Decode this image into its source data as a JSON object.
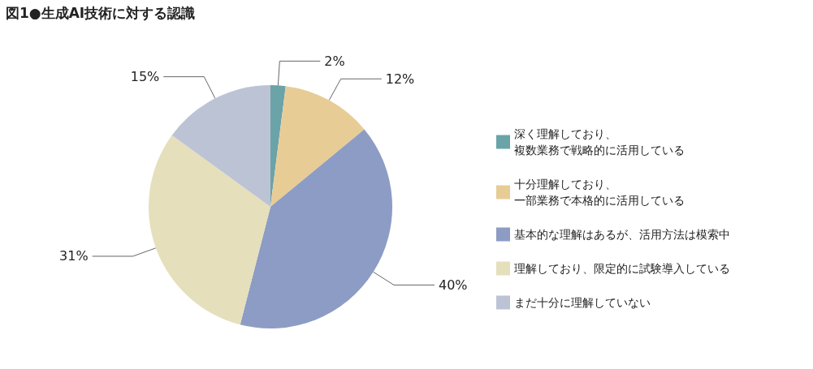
{
  "chart_data": {
    "type": "pie",
    "title": "図1●生成AI技術に対する認識",
    "categories": [
      "深く理解しており、複数業務で戦略的に活用している",
      "十分理解しており、一部業務で本格的に活用している",
      "基本的な理解はあるが、活用方法は模索中",
      "理解しており、限定的に試験導入している",
      "まだ十分に理解していない"
    ],
    "values": [
      2,
      12,
      40,
      31,
      15
    ],
    "value_labels": [
      "2%",
      "12%",
      "40%",
      "31%",
      "15%"
    ],
    "colors": [
      "#6aa3a8",
      "#e8cc96",
      "#8d9cc4",
      "#e5dfbb",
      "#bcc3d4"
    ],
    "legend": "right"
  }
}
